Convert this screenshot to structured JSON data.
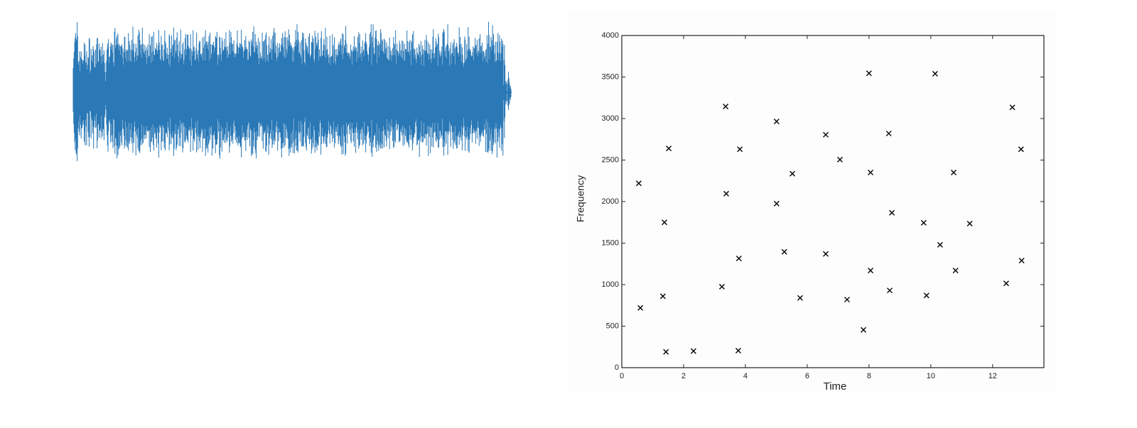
{
  "chart_data": {
    "type": "scatter",
    "xlabel": "Time",
    "ylabel": "Frequency",
    "marker": "x",
    "color": "#000000",
    "xlim": [
      0,
      13.66
    ],
    "ylim": [
      0,
      4000
    ],
    "xticks": [
      0,
      2,
      4,
      6,
      8,
      10,
      12
    ],
    "yticks": [
      0,
      500,
      1000,
      1500,
      2000,
      2500,
      3000,
      3500,
      4000
    ],
    "x": [
      0.55,
      0.6,
      1.38,
      1.33,
      1.43,
      1.52,
      2.32,
      3.24,
      3.36,
      3.38,
      3.79,
      3.82,
      3.77,
      5.01,
      5.01,
      5.26,
      5.52,
      5.77,
      6.6,
      6.6,
      7.06,
      7.29,
      7.82,
      8.0,
      8.05,
      8.05,
      8.64,
      8.67,
      8.74,
      9.77,
      9.86,
      10.14,
      10.3,
      10.74,
      10.8,
      11.26,
      12.44,
      12.64,
      12.94,
      12.92
    ],
    "y": [
      2220,
      720,
      1750,
      860,
      190,
      2640,
      200,
      975,
      3145,
      2095,
      1315,
      2630,
      205,
      2965,
      1975,
      1395,
      2335,
      840,
      2805,
      1370,
      2505,
      820,
      455,
      3545,
      2350,
      1170,
      2820,
      930,
      1865,
      1745,
      870,
      3540,
      1480,
      2350,
      1170,
      1735,
      1015,
      3135,
      1290,
      2630
    ]
  }
}
